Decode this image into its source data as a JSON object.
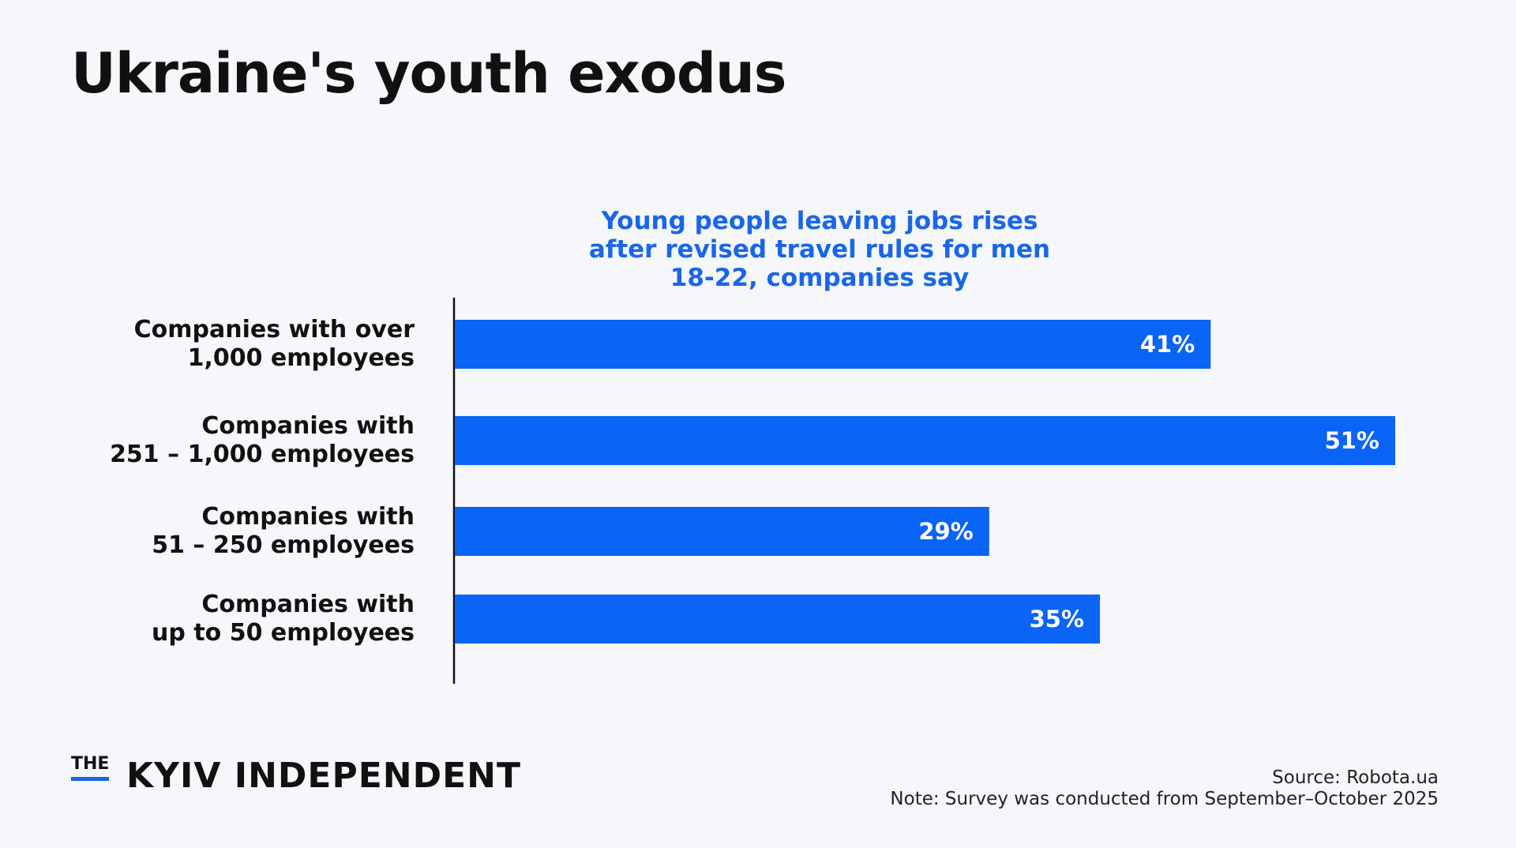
{
  "title": "Ukraine's youth exodus",
  "chart_data": {
    "type": "bar",
    "orientation": "horizontal",
    "subtitle": "Young people leaving jobs rises\nafter revised travel rules for men\n18-22, companies say",
    "categories": [
      "Companies with over\n1,000 employees",
      "Companies with\n251 – 1,000 employees",
      "Companies with\n51 – 250 employees",
      "Companies with\nup to 50 employees"
    ],
    "values": [
      41,
      51,
      29,
      35
    ],
    "value_labels": [
      "41%",
      "51%",
      "29%",
      "35%"
    ],
    "color": "#0a64f5"
  },
  "footer": {
    "logo_prefix": "THE",
    "logo_name": "KYIV INDEPENDENT",
    "source": "Source:  Robota.ua",
    "note": "Note: Survey was conducted from September–October 2025"
  }
}
